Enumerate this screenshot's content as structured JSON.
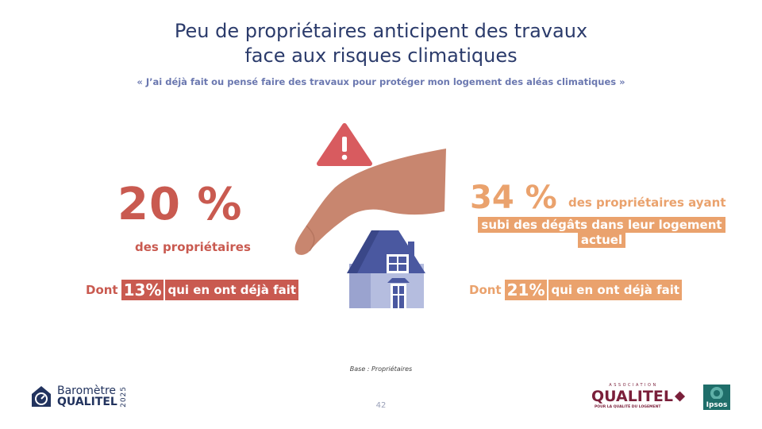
{
  "title": {
    "line1": "Peu de propriétaires anticipent des travaux",
    "line2": "face aux risques climatiques"
  },
  "subtitle": "« J’ai déjà fait ou pensé faire des travaux pour protéger mon logement des aléas climatiques »",
  "left": {
    "big_value": "20 %",
    "label": "des propriétaires",
    "dont_word": "Dont",
    "pct": "13%",
    "suffix": "qui en ont déjà fait"
  },
  "right": {
    "big_value": "34 %",
    "line1": "des propriétaires ayant",
    "highlight": "subi des dégâts dans leur logement actuel",
    "dont_word": "Dont",
    "pct": "21%",
    "suffix": "qui en ont déjà fait"
  },
  "base_note": "Base : Propriétaires",
  "page_number": "42",
  "logos": {
    "barometre": {
      "line1": "Baromètre",
      "line2": "QUALITEL",
      "year": "2025"
    },
    "qualitel": {
      "assoc": "ASSOCIATION",
      "name": "QUALITEL",
      "tagline": "POUR LA QUALITÉ DU LOGEMENT"
    },
    "ipsos": "Ipsos"
  },
  "colors": {
    "title": "#2b3b6b",
    "red": "#c95a50",
    "orange": "#eaa26d",
    "hand": "#c8866f",
    "house_roof": "#4a58a0",
    "house_wall": "#b5bddf"
  }
}
